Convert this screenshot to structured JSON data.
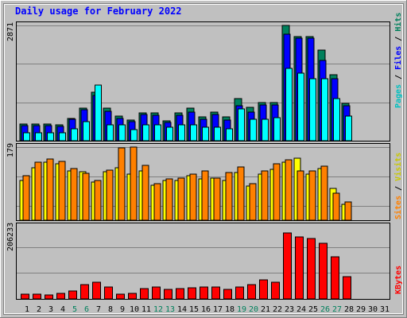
{
  "title": "Daily usage for February 2022",
  "colors": {
    "hits": "#00805c",
    "files": "#0000ff",
    "pages": "#00ffff",
    "visits": "#ffff00",
    "sites": "#ff8000",
    "kbytes": "#ff0000",
    "weekend_label": "#00805c",
    "weekday_label": "#000000"
  },
  "legend": {
    "top": [
      {
        "text": "Pages",
        "color": "#00c0c0"
      },
      {
        "text": " / ",
        "color": "#000000"
      },
      {
        "text": "Files",
        "color": "#0000ff"
      },
      {
        "text": " / ",
        "color": "#000000"
      },
      {
        "text": "Hits",
        "color": "#00805c"
      }
    ],
    "middle": [
      {
        "text": "Sites",
        "color": "#ff8000"
      },
      {
        "text": " / ",
        "color": "#000000"
      },
      {
        "text": "Visits",
        "color": "#c8c800"
      }
    ],
    "bottom": [
      {
        "text": "KBytes",
        "color": "#ff0000"
      }
    ]
  },
  "chart_data": [
    {
      "type": "bar",
      "panel": "hits-files-pages",
      "ymax_label": "2871",
      "ylim": [
        0,
        2871
      ],
      "categories": [
        "1",
        "2",
        "3",
        "4",
        "5",
        "6",
        "7",
        "8",
        "9",
        "10",
        "11",
        "12",
        "13",
        "14",
        "15",
        "16",
        "17",
        "18",
        "19",
        "20",
        "21",
        "22",
        "23",
        "24",
        "25",
        "26",
        "27",
        "28",
        "29",
        "30",
        "31"
      ],
      "series": [
        {
          "name": "Hits",
          "values": [
            420,
            420,
            410,
            400,
            560,
            820,
            1200,
            820,
            620,
            520,
            700,
            700,
            500,
            700,
            820,
            590,
            720,
            590,
            1050,
            830,
            960,
            950,
            2871,
            2600,
            2600,
            2250,
            1650,
            930,
            0,
            0,
            0
          ]
        },
        {
          "name": "Files",
          "values": [
            380,
            380,
            370,
            360,
            530,
            780,
            1120,
            730,
            560,
            480,
            650,
            640,
            450,
            630,
            720,
            530,
            660,
            520,
            880,
            710,
            900,
            900,
            2650,
            2550,
            2550,
            2000,
            1550,
            870,
            0,
            0,
            0
          ]
        },
        {
          "name": "Pages",
          "values": [
            200,
            200,
            195,
            195,
            290,
            480,
            1390,
            390,
            390,
            275,
            390,
            390,
            340,
            390,
            390,
            330,
            340,
            300,
            790,
            535,
            540,
            570,
            1800,
            1680,
            1540,
            1540,
            1050,
            610,
            0,
            0,
            0
          ]
        }
      ]
    },
    {
      "type": "bar",
      "panel": "visits-sites",
      "ymax_label": "179",
      "ylim": [
        0,
        179
      ],
      "categories": [
        "1",
        "2",
        "3",
        "4",
        "5",
        "6",
        "7",
        "8",
        "9",
        "10",
        "11",
        "12",
        "13",
        "14",
        "15",
        "16",
        "17",
        "18",
        "19",
        "20",
        "21",
        "22",
        "23",
        "24",
        "25",
        "26",
        "27",
        "28",
        "29",
        "30",
        "31"
      ],
      "series": [
        {
          "name": "Visits",
          "values": [
            98,
            128,
            142,
            138,
            120,
            119,
            94,
            118,
            128,
            112,
            120,
            86,
            98,
            98,
            108,
            102,
            103,
            98,
            116,
            84,
            113,
            124,
            142,
            152,
            112,
            126,
            78,
            38,
            0,
            0,
            0
          ]
        },
        {
          "name": "Sites",
          "values": [
            108,
            142,
            149,
            144,
            126,
            114,
            97,
            122,
            178,
            179,
            135,
            90,
            102,
            104,
            112,
            120,
            104,
            116,
            130,
            90,
            120,
            138,
            148,
            120,
            120,
            132,
            67,
            45,
            0,
            0,
            0
          ]
        }
      ]
    },
    {
      "type": "bar",
      "panel": "kbytes",
      "ymax_label": "206233",
      "ylim": [
        0,
        206233
      ],
      "categories": [
        "1",
        "2",
        "3",
        "4",
        "5",
        "6",
        "7",
        "8",
        "9",
        "10",
        "11",
        "12",
        "13",
        "14",
        "15",
        "16",
        "17",
        "18",
        "19",
        "20",
        "21",
        "22",
        "23",
        "24",
        "25",
        "26",
        "27",
        "28",
        "29",
        "30",
        "31"
      ],
      "series": [
        {
          "name": "KBytes",
          "values": [
            13000,
            13000,
            11000,
            15000,
            22000,
            40000,
            48000,
            34000,
            13000,
            15000,
            30000,
            34000,
            28000,
            30000,
            31000,
            33000,
            33000,
            28000,
            33000,
            41000,
            55000,
            47000,
            189000,
            176000,
            172000,
            159000,
            119000,
            63000,
            0,
            0,
            0
          ]
        }
      ]
    }
  ],
  "x_labels": [
    {
      "text": "1",
      "weekend": false
    },
    {
      "text": "2",
      "weekend": false
    },
    {
      "text": "3",
      "weekend": false
    },
    {
      "text": "4",
      "weekend": false
    },
    {
      "text": "5",
      "weekend": true
    },
    {
      "text": "6",
      "weekend": true
    },
    {
      "text": "7",
      "weekend": false
    },
    {
      "text": "8",
      "weekend": false
    },
    {
      "text": "9",
      "weekend": false
    },
    {
      "text": "10",
      "weekend": false
    },
    {
      "text": "11",
      "weekend": false
    },
    {
      "text": "12",
      "weekend": true
    },
    {
      "text": "13",
      "weekend": true
    },
    {
      "text": "14",
      "weekend": false
    },
    {
      "text": "15",
      "weekend": false
    },
    {
      "text": "16",
      "weekend": false
    },
    {
      "text": "17",
      "weekend": false
    },
    {
      "text": "18",
      "weekend": false
    },
    {
      "text": "19",
      "weekend": true
    },
    {
      "text": "20",
      "weekend": true
    },
    {
      "text": "21",
      "weekend": false
    },
    {
      "text": "22",
      "weekend": false
    },
    {
      "text": "23",
      "weekend": false
    },
    {
      "text": "24",
      "weekend": false
    },
    {
      "text": "25",
      "weekend": false
    },
    {
      "text": "26",
      "weekend": true
    },
    {
      "text": "27",
      "weekend": true
    },
    {
      "text": "28",
      "weekend": false
    },
    {
      "text": "29",
      "weekend": false
    },
    {
      "text": "30",
      "weekend": false
    },
    {
      "text": "31",
      "weekend": false
    }
  ]
}
